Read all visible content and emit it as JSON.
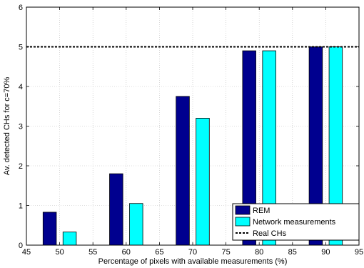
{
  "chart_data": {
    "type": "bar",
    "xlabel": "Percentage of pixels with available measurements (%)",
    "ylabel": "Av. detected CHs for c=70%",
    "xlim": [
      45,
      95
    ],
    "ylim": [
      0,
      6
    ],
    "xticks": [
      45,
      50,
      55,
      60,
      65,
      70,
      75,
      80,
      85,
      90,
      95
    ],
    "yticks": [
      0,
      1,
      2,
      3,
      4,
      5,
      6
    ],
    "grid": true,
    "legend_position": "bottom-right",
    "bar_width": 2,
    "series": [
      {
        "name": "REM",
        "color": "#00008f",
        "x": [
          48.5,
          58.5,
          68.5,
          78.5,
          88.5
        ],
        "values": [
          0.83,
          1.8,
          3.75,
          4.9,
          5.0
        ]
      },
      {
        "name": "Network measurements",
        "color": "#00ffff",
        "x": [
          51.5,
          61.5,
          71.5,
          81.5,
          91.5
        ],
        "values": [
          0.33,
          1.05,
          3.2,
          4.9,
          5.0
        ]
      }
    ],
    "reference_line": {
      "name": "Real CHs",
      "y": 5,
      "style": "dashed",
      "color": "#000000"
    }
  }
}
